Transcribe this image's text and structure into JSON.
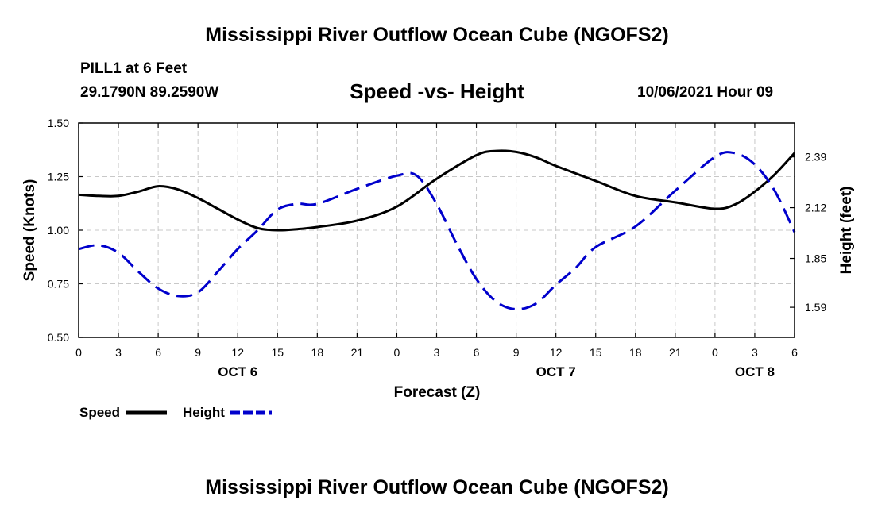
{
  "header": {
    "main_title": "Mississippi River Outflow Ocean Cube (NGOFS2)",
    "station": "PILL1 at 6 Feet",
    "coordinates": "29.1790N  89.2590W",
    "subtitle": "Speed -vs- Height",
    "timestamp": "10/06/2021 Hour 09"
  },
  "footer": {
    "main_title": "Mississippi River Outflow Ocean Cube (NGOFS2)"
  },
  "chart_data": {
    "type": "line",
    "title": "Speed -vs- Height",
    "xlabel": "Forecast (Z)",
    "ylabel": "Speed (Knots)",
    "y2label": "Height (feet)",
    "x_range_hours": [
      0,
      54
    ],
    "x_ticks": [
      "0",
      "3",
      "6",
      "9",
      "12",
      "15",
      "18",
      "21",
      "0",
      "3",
      "6",
      "9",
      "12",
      "15",
      "18",
      "21",
      "0",
      "3",
      "6"
    ],
    "date_labels": [
      {
        "label": "OCT 6",
        "hour": 12
      },
      {
        "label": "OCT 7",
        "hour": 36
      },
      {
        "label": "OCT 8",
        "hour": 51
      }
    ],
    "ylim": [
      0.5,
      1.5
    ],
    "y_ticks": [
      "0.50",
      "0.75",
      "1.00",
      "1.25",
      "1.50"
    ],
    "y2lim": [
      1.43,
      2.57
    ],
    "y2_ticks": [
      "1.59",
      "1.85",
      "2.12",
      "2.39"
    ],
    "grid": true,
    "series": [
      {
        "name": "Speed",
        "axis": "left",
        "color": "#000000",
        "style": "solid",
        "x": [
          0,
          1.5,
          3,
          4.5,
          6,
          7.5,
          9,
          10.5,
          12,
          13.5,
          15,
          16.5,
          18,
          21,
          24,
          27,
          30,
          31.5,
          33,
          34.5,
          36,
          39,
          42,
          45,
          48,
          49.5,
          51,
          52.5,
          54
        ],
        "y": [
          1.165,
          1.16,
          1.16,
          1.18,
          1.205,
          1.19,
          1.15,
          1.1,
          1.05,
          1.01,
          1.0,
          1.005,
          1.015,
          1.045,
          1.11,
          1.24,
          1.35,
          1.37,
          1.365,
          1.34,
          1.3,
          1.23,
          1.16,
          1.13,
          1.1,
          1.12,
          1.18,
          1.26,
          1.36
        ]
      },
      {
        "name": "Height",
        "axis": "right",
        "color": "#0000cc",
        "style": "dashed",
        "x": [
          0,
          1.5,
          3,
          4.5,
          6,
          7.5,
          9,
          10.5,
          12,
          13.5,
          15,
          16.5,
          18,
          21,
          24,
          25.5,
          27,
          28.5,
          30,
          31.5,
          33,
          34.5,
          36,
          37.5,
          39,
          42,
          45,
          48,
          49.5,
          51,
          52.5,
          54
        ],
        "y": [
          1.9,
          1.92,
          1.88,
          1.78,
          1.69,
          1.65,
          1.67,
          1.78,
          1.9,
          2.0,
          2.11,
          2.14,
          2.14,
          2.22,
          2.29,
          2.29,
          2.14,
          1.93,
          1.74,
          1.62,
          1.58,
          1.61,
          1.71,
          1.8,
          1.91,
          2.02,
          2.21,
          2.39,
          2.41,
          2.35,
          2.21,
          1.99
        ]
      }
    ],
    "legend": [
      {
        "label": "Speed",
        "color": "#000000",
        "style": "solid"
      },
      {
        "label": "Height",
        "color": "#0000cc",
        "style": "dashed"
      }
    ]
  }
}
